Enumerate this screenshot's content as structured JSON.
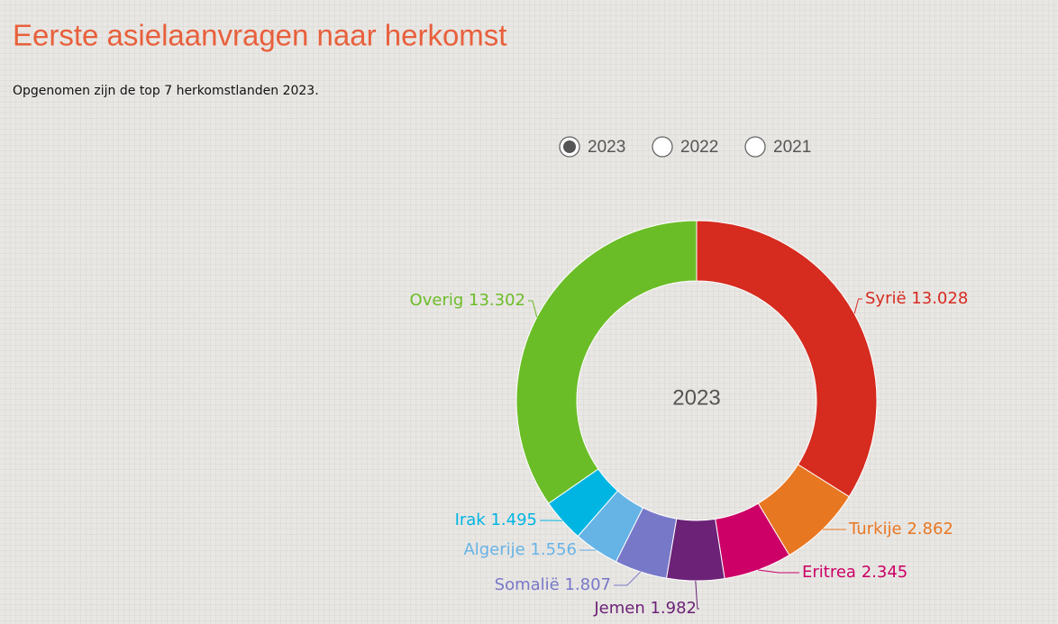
{
  "title": "Eerste asielaanvragen naar herkomst",
  "subtitle": "Opgenomen zijn de top 7 herkomstlanden 2023.",
  "options": [
    "2023",
    "2022",
    "2021"
  ],
  "selected_option": 0,
  "chart_data": {
    "type": "donut",
    "center_label": "2023",
    "categories": [
      "Syrië",
      "Turkije",
      "Eritrea",
      "Jemen",
      "Somalië",
      "Algerije",
      "Irak",
      "Overig"
    ],
    "values": [
      13028,
      2862,
      2345,
      1982,
      1807,
      1556,
      1495,
      13302
    ],
    "value_labels": [
      "13.028",
      "2.862",
      "2.345",
      "1.982",
      "1.807",
      "1.556",
      "1.495",
      "13.302"
    ],
    "colors": [
      "#d62b1f",
      "#e87722",
      "#cc0066",
      "#6b2277",
      "#7878c8",
      "#66b3e6",
      "#00b5e2",
      "#6bbd27"
    ]
  }
}
